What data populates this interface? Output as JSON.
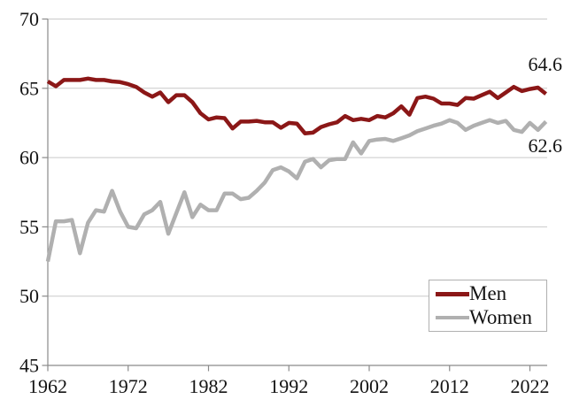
{
  "chart_data": {
    "type": "line",
    "title": "",
    "xlabel": "",
    "ylabel": "",
    "ylim": [
      45,
      70
    ],
    "xlim": [
      1962,
      2024
    ],
    "grid": "horizontal-only",
    "y_ticks": [
      45,
      50,
      55,
      60,
      65,
      70
    ],
    "x_ticks": [
      1962,
      1972,
      1982,
      1992,
      2002,
      2012,
      2022
    ],
    "years": {
      "start": 1962,
      "end": 2024,
      "step": 1
    },
    "series": [
      {
        "name": "Men",
        "color": "#8b1717",
        "values": [
          65.5,
          65.15,
          65.6,
          65.6,
          65.6,
          65.7,
          65.6,
          65.6,
          65.5,
          65.45,
          65.3,
          65.1,
          64.7,
          64.4,
          64.7,
          64.0,
          64.5,
          64.5,
          64.0,
          63.2,
          62.75,
          62.9,
          62.85,
          62.1,
          62.6,
          62.6,
          62.65,
          62.55,
          62.55,
          62.15,
          62.5,
          62.45,
          61.75,
          61.8,
          62.2,
          62.4,
          62.55,
          63.0,
          62.7,
          62.8,
          62.7,
          63.0,
          62.9,
          63.2,
          63.7,
          63.1,
          64.3,
          64.4,
          64.25,
          63.9,
          63.9,
          63.8,
          64.3,
          64.25,
          64.5,
          64.75,
          64.3,
          64.7,
          65.1,
          64.8,
          64.95,
          65.05,
          64.6
        ]
      },
      {
        "name": "Women",
        "color": "#b0b0b0",
        "values": [
          52.5,
          55.4,
          55.4,
          55.5,
          53.1,
          55.3,
          56.2,
          56.1,
          57.6,
          56.1,
          55.0,
          54.9,
          55.9,
          56.2,
          56.8,
          54.5,
          56.0,
          57.5,
          55.7,
          56.6,
          56.2,
          56.2,
          57.4,
          57.4,
          57.0,
          57.1,
          57.6,
          58.2,
          59.1,
          59.3,
          59.0,
          58.5,
          59.7,
          59.9,
          59.3,
          59.8,
          59.9,
          59.9,
          61.1,
          60.3,
          61.2,
          61.3,
          61.35,
          61.2,
          61.4,
          61.6,
          61.9,
          62.1,
          62.3,
          62.45,
          62.7,
          62.5,
          62.0,
          62.3,
          62.5,
          62.7,
          62.5,
          62.65,
          62.0,
          61.85,
          62.5,
          62.0,
          62.6
        ]
      }
    ],
    "end_labels": [
      {
        "series": "Men",
        "text": "64.6"
      },
      {
        "series": "Women",
        "text": "62.6"
      }
    ],
    "legend": {
      "position": "bottom-right",
      "items": [
        {
          "label": "Men",
          "color": "#8b1717"
        },
        {
          "label": "Women",
          "color": "#b0b0b0"
        }
      ]
    },
    "colors": {
      "men_line": "#8b1717",
      "women_line": "#b0b0b0",
      "gridline": "#c9c9c9",
      "axis": "#8a8a8a",
      "tick_text": "#141414"
    }
  }
}
